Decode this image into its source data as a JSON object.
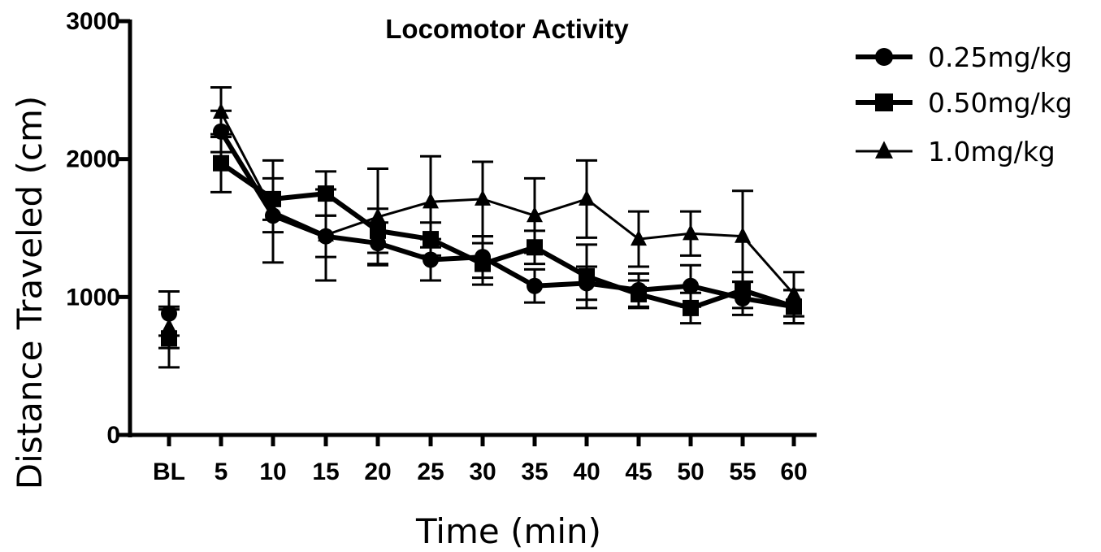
{
  "chart_data": {
    "type": "line",
    "title": "Locomotor Activity",
    "xlabel": "Time (min)",
    "ylabel": "Distance Traveled (cm)",
    "categories": [
      "BL",
      "5",
      "10",
      "15",
      "20",
      "25",
      "30",
      "35",
      "40",
      "45",
      "50",
      "55",
      "60"
    ],
    "ylim": [
      0,
      3000
    ],
    "yticks": [
      "0",
      "1000",
      "2000",
      "3000"
    ],
    "grid": false,
    "legend_position": "top-right outside",
    "series": [
      {
        "name": "0.25mg/kg",
        "marker": "circle",
        "values": [
          880,
          2200,
          1590,
          1440,
          1390,
          1270,
          1290,
          1080,
          1100,
          1050,
          1080,
          990,
          930
        ],
        "err": [
          160,
          150,
          120,
          150,
          150,
          150,
          150,
          120,
          120,
          120,
          150,
          120,
          120
        ]
      },
      {
        "name": "0.50mg/kg",
        "marker": "square",
        "values": [
          700,
          1970,
          1710,
          1750,
          1480,
          1420,
          1240,
          1360,
          1150,
          1020,
          920,
          1050,
          930
        ],
        "err": [
          210,
          210,
          150,
          160,
          160,
          120,
          150,
          120,
          230,
          100,
          110,
          130,
          120
        ]
      },
      {
        "name": "1.0mg/kg",
        "marker": "triangle",
        "values": [
          780,
          2340,
          1620,
          1450,
          1580,
          1690,
          1710,
          1590,
          1710,
          1420,
          1460,
          1440,
          1020
        ],
        "err": [
          150,
          180,
          370,
          330,
          350,
          330,
          270,
          270,
          280,
          200,
          160,
          330,
          160
        ]
      }
    ]
  }
}
